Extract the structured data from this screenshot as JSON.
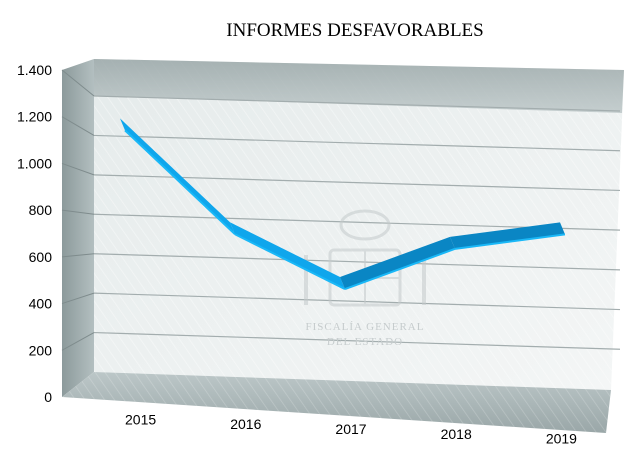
{
  "chart_data": {
    "type": "line",
    "title": "INFORMES DESFAVORABLES",
    "x": [
      "2015",
      "2016",
      "2017",
      "2018",
      "2019"
    ],
    "series": [
      {
        "values": [
          1270,
          760,
          500,
          720,
          810
        ],
        "color": "#0fa6ec"
      }
    ],
    "ylim": [
      0,
      1400
    ],
    "yticks": [
      0,
      200,
      400,
      600,
      800,
      1000,
      1200,
      1400
    ],
    "ytick_labels": [
      "0",
      "200",
      "400",
      "600",
      "800",
      "1.000",
      "1.200",
      "1.400"
    ],
    "grid": true,
    "three_d": true
  },
  "watermark": {
    "line1": "FISCALÍA GENERAL",
    "line2": "DEL ESTADO"
  }
}
